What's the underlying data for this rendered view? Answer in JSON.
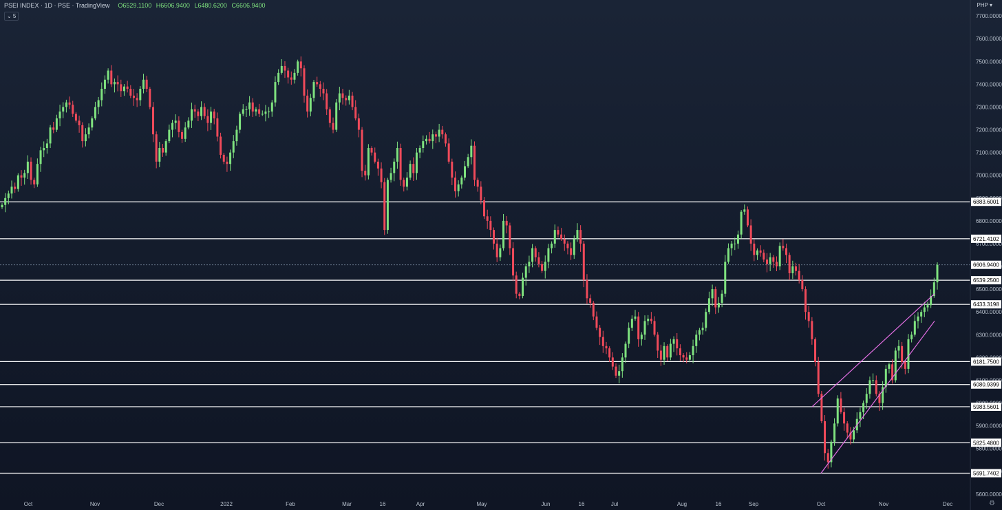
{
  "header": {
    "title": "PSEI INDEX · 1D · PSE · TradingView",
    "open": "O6529.1100",
    "high": "H6606.9400",
    "low": "L6480.6200",
    "close": "C6606.9400",
    "interval_badge": "⌄ 5"
  },
  "currency": "PHP ▾",
  "colors": {
    "up": "#7fe27f",
    "down": "#f04a5a",
    "line": "#ffffff",
    "channel": "#e36fe3",
    "axis_text": "#b7c0cc"
  },
  "chart_data": {
    "type": "candlestick",
    "title": "PSEI INDEX",
    "ylim": [
      5530,
      7770
    ],
    "y_ticks": [
      "7700.0000",
      "7600.0000",
      "7500.0000",
      "7400.0000",
      "7300.0000",
      "7200.0000",
      "7100.0000",
      "7000.0000",
      "6900.0000",
      "6800.0000",
      "6700.0000",
      "6600.0000",
      "6500.0000",
      "6400.0000",
      "6300.0000",
      "6200.0000",
      "6100.0000",
      "6000.0000",
      "5900.0000",
      "5800.0000",
      "5700.0000",
      "5600.0000"
    ],
    "x_labels": [
      "Oct",
      "Nov",
      "Dec",
      "2022",
      "Feb",
      "Mar",
      "16",
      "Apr",
      "May",
      "Jun",
      "16",
      "Jul",
      "Aug",
      "16",
      "Sep",
      "Oct",
      "Nov",
      "Dec"
    ],
    "horizontal_levels": [
      "6883.6001",
      "6721.4102",
      "6539.2500",
      "6433.3198",
      "6181.7500",
      "6080.9399",
      "5983.5601",
      "5825.4800",
      "5691.7402"
    ],
    "last_price": "6606.9400",
    "closes": [
      6870,
      6900,
      6920,
      6950,
      6940,
      7000,
      6990,
      7010,
      7060,
      6980,
      6960,
      7050,
      7110,
      7120,
      7140,
      7210,
      7200,
      7250,
      7280,
      7300,
      7320,
      7310,
      7270,
      7240,
      7220,
      7150,
      7180,
      7210,
      7250,
      7300,
      7330,
      7380,
      7420,
      7460,
      7400,
      7410,
      7400,
      7370,
      7390,
      7380,
      7350,
      7340,
      7330,
      7380,
      7420,
      7380,
      7300,
      7180,
      7060,
      7120,
      7100,
      7150,
      7200,
      7230,
      7240,
      7190,
      7160,
      7210,
      7240,
      7290,
      7280,
      7260,
      7300,
      7260,
      7230,
      7280,
      7250,
      7170,
      7090,
      7060,
      7050,
      7100,
      7150,
      7200,
      7270,
      7290,
      7290,
      7320,
      7280,
      7290,
      7270,
      7270,
      7280,
      7280,
      7320,
      7410,
      7450,
      7480,
      7460,
      7430,
      7420,
      7450,
      7500,
      7470,
      7350,
      7280,
      7340,
      7410,
      7400,
      7380,
      7360,
      7290,
      7230,
      7200,
      7320,
      7360,
      7340,
      7330,
      7350,
      7300,
      7250,
      7200,
      7020,
      7000,
      7120,
      7100,
      7060,
      7030,
      6970,
      6760,
      6980,
      7010,
      7060,
      7120,
      6980,
      6950,
      6990,
      7050,
      7010,
      7100,
      7120,
      7150,
      7160,
      7150,
      7180,
      7170,
      7200,
      7180,
      7140,
      7060,
      6990,
      6930,
      6960,
      6990,
      7040,
      7080,
      7130,
      6980,
      6950,
      6890,
      6820,
      6800,
      6760,
      6700,
      6640,
      6680,
      6800,
      6780,
      6680,
      6560,
      6480,
      6470,
      6550,
      6600,
      6620,
      6680,
      6640,
      6610,
      6580,
      6620,
      6680,
      6700,
      6760,
      6740,
      6720,
      6700,
      6680,
      6650,
      6720,
      6760,
      6700,
      6540,
      6460,
      6440,
      6380,
      6330,
      6290,
      6250,
      6240,
      6200,
      6160,
      6120,
      6140,
      6200,
      6260,
      6330,
      6370,
      6380,
      6280,
      6300,
      6360,
      6370,
      6360,
      6300,
      6230,
      6190,
      6250,
      6200,
      6260,
      6280,
      6240,
      6210,
      6200,
      6190,
      6210,
      6250,
      6300,
      6320,
      6330,
      6400,
      6460,
      6500,
      6420,
      6440,
      6480,
      6620,
      6680,
      6700,
      6700,
      6740,
      6840,
      6850,
      6780,
      6700,
      6650,
      6670,
      6660,
      6630,
      6610,
      6640,
      6620,
      6600,
      6690,
      6680,
      6650,
      6570,
      6600,
      6580,
      6540,
      6500,
      6400,
      6360,
      6280,
      6180,
      6040,
      5920,
      5780,
      5740,
      5830,
      5910,
      6020,
      5960,
      5910,
      5870,
      5840,
      5880,
      5930,
      5960,
      6000,
      6040,
      6100,
      6100,
      6040,
      6000,
      6070,
      6150,
      6170,
      6100,
      6230,
      6250,
      6180,
      6150,
      6280,
      6300,
      6360,
      6380,
      6400,
      6420,
      6430,
      6470,
      6530,
      6607
    ],
    "channel_lines": [
      {
        "from": [
          "2022-09-29",
          5983.5
        ],
        "to": [
          "2022-11-24",
          6480
        ]
      },
      {
        "from": [
          "2022-10-03",
          5691.7
        ],
        "to": [
          "2022-11-24",
          6360
        ]
      }
    ]
  }
}
